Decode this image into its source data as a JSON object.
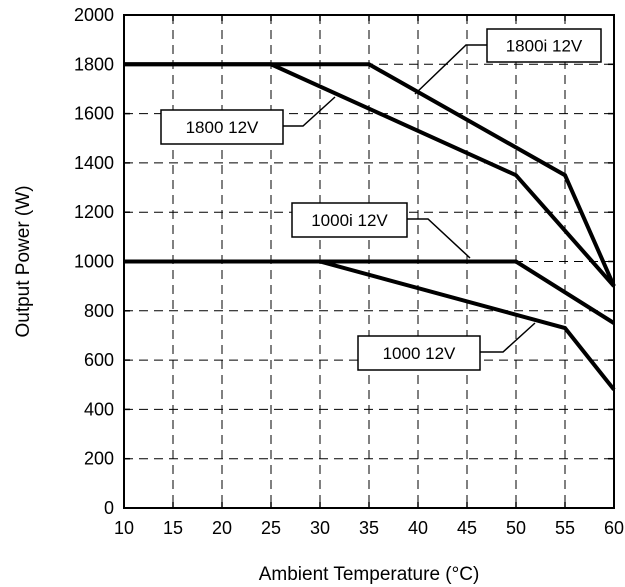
{
  "chart_data": {
    "type": "line",
    "title": "",
    "xlabel": "Ambient Temperature (°C)",
    "ylabel": "Output Power (W)",
    "xlim": [
      10,
      60
    ],
    "ylim": [
      0,
      2000
    ],
    "x_ticks": [
      10,
      15,
      20,
      25,
      30,
      35,
      40,
      45,
      50,
      55,
      60
    ],
    "y_ticks": [
      0,
      200,
      400,
      600,
      800,
      1000,
      1200,
      1400,
      1600,
      1800,
      2000
    ],
    "grid": true,
    "grid_style": "dashed",
    "series": [
      {
        "name": "1800i 12V",
        "points": [
          [
            10,
            1800
          ],
          [
            35,
            1800
          ],
          [
            55,
            1350
          ],
          [
            60,
            900
          ]
        ]
      },
      {
        "name": "1800 12V",
        "points": [
          [
            10,
            1800
          ],
          [
            25,
            1800
          ],
          [
            50,
            1350
          ],
          [
            60,
            900
          ]
        ]
      },
      {
        "name": "1000i 12V",
        "points": [
          [
            10,
            1000
          ],
          [
            50,
            1000
          ],
          [
            60,
            750
          ]
        ]
      },
      {
        "name": "1000 12V",
        "points": [
          [
            10,
            1000
          ],
          [
            30,
            1000
          ],
          [
            55,
            730
          ],
          [
            60,
            480
          ]
        ]
      }
    ],
    "callouts": [
      {
        "text": "1800i 12V"
      },
      {
        "text": "1800 12V"
      },
      {
        "text": "1000i 12V"
      },
      {
        "text": "1000 12V"
      }
    ]
  }
}
